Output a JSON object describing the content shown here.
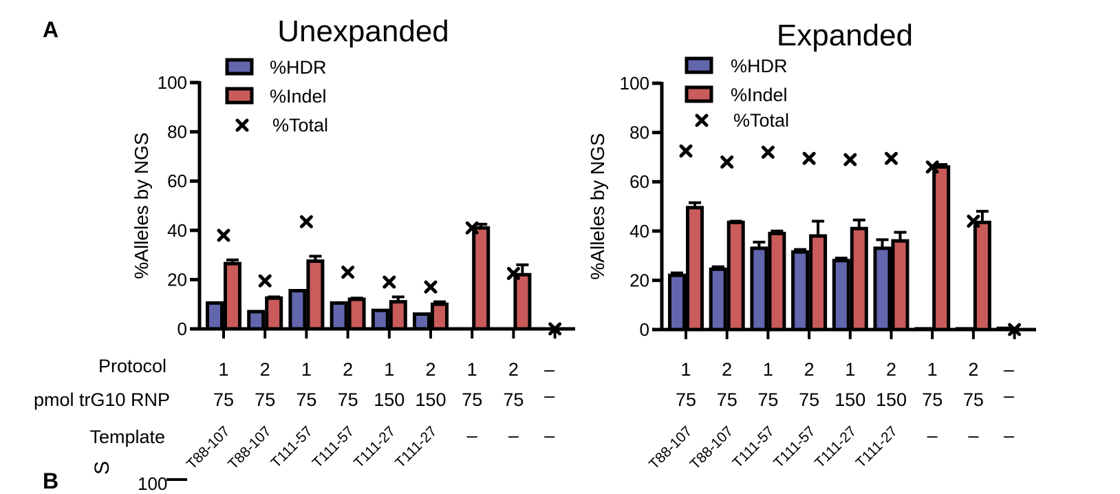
{
  "panel_labels": {
    "a": "A",
    "b": "B"
  },
  "row_labels": {
    "protocol": "Protocol",
    "pmol": "pmol trG10 RNP",
    "template": "Template"
  },
  "columns": [
    {
      "protocol": "1",
      "pmol": "75",
      "template": "T88-107"
    },
    {
      "protocol": "2",
      "pmol": "75",
      "template": "T88-107"
    },
    {
      "protocol": "1",
      "pmol": "75",
      "template": "T111-57"
    },
    {
      "protocol": "2",
      "pmol": "75",
      "template": "T111-57"
    },
    {
      "protocol": "1",
      "pmol": "150",
      "template": "T111-27"
    },
    {
      "protocol": "2",
      "pmol": "150",
      "template": "T111-27"
    },
    {
      "protocol": "1",
      "pmol": "75",
      "template": "–"
    },
    {
      "protocol": "2",
      "pmol": "75",
      "template": "–"
    },
    {
      "protocol": "–",
      "pmol": "–",
      "template": "–"
    }
  ],
  "colors": {
    "hdr": "#6266ad",
    "indel": "#c95b5b",
    "outline": "#000000"
  },
  "chart_data": [
    {
      "type": "bar",
      "title": "Unexpanded",
      "ylabel": "%Alleles by NGS",
      "ylim": [
        0,
        100
      ],
      "yticks": [
        0,
        20,
        40,
        60,
        80,
        100
      ],
      "legend": [
        "%HDR",
        "%Indel",
        "%Total"
      ],
      "legend_position": "top-left",
      "series": [
        {
          "name": "%HDR",
          "values": [
            10.5,
            7,
            15.5,
            10.5,
            7.5,
            6,
            0,
            0,
            0
          ],
          "errors": [
            0,
            0,
            0,
            0,
            0,
            0,
            0,
            0,
            0
          ]
        },
        {
          "name": "%Indel",
          "values": [
            26.5,
            12.5,
            27.5,
            12,
            11,
            10,
            41,
            22,
            0
          ],
          "errors": [
            1.5,
            0.5,
            2,
            0.5,
            2,
            1,
            1.5,
            4,
            0
          ]
        },
        {
          "name": "%Total",
          "values": [
            38,
            19.5,
            43.5,
            23,
            19,
            17,
            41,
            22.5,
            0
          ]
        }
      ]
    },
    {
      "type": "bar",
      "title": "Expanded",
      "ylabel": "%Alleles by NGS",
      "ylim": [
        0,
        100
      ],
      "yticks": [
        0,
        20,
        40,
        60,
        80,
        100
      ],
      "legend": [
        "%HDR",
        "%Indel",
        "%Total"
      ],
      "legend_position": "top-left",
      "series": [
        {
          "name": "%HDR",
          "values": [
            22,
            24.5,
            33,
            31.5,
            28,
            33,
            0.3,
            0.3,
            0.5
          ],
          "errors": [
            1,
            1,
            2.5,
            1,
            1,
            3.5,
            0,
            0,
            0
          ]
        },
        {
          "name": "%Indel",
          "values": [
            49.5,
            43.5,
            39,
            38,
            41,
            36,
            66,
            43.5,
            0
          ],
          "errors": [
            2,
            0.5,
            1,
            6,
            3.5,
            3.5,
            1,
            4.5,
            0
          ]
        },
        {
          "name": "%Total",
          "values": [
            72.5,
            68,
            72,
            69.5,
            69,
            69.5,
            66,
            44,
            0
          ]
        }
      ]
    }
  ]
}
